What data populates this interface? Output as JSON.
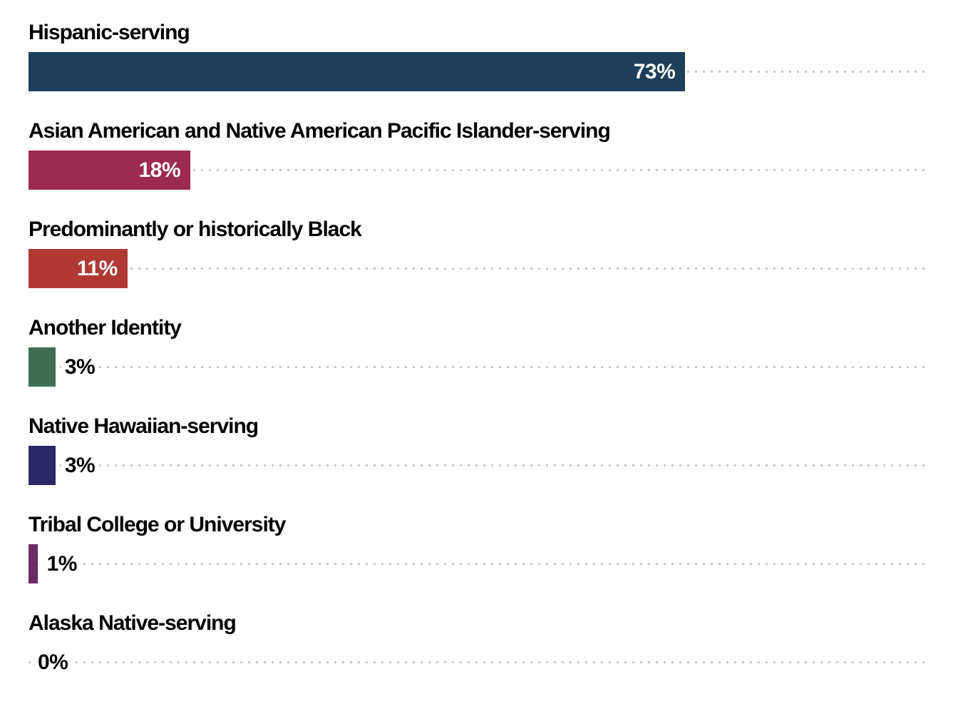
{
  "chart_data": {
    "type": "bar",
    "orientation": "horizontal",
    "title": "",
    "xlabel": "",
    "ylabel": "",
    "xlim": [
      0,
      100
    ],
    "unit": "%",
    "grid": "dotted-leader-line-per-row-to-100",
    "legend": "none",
    "categories": [
      "Hispanic-serving",
      "Asian American and Native American Pacific Islander-serving",
      "Predominantly or historically Black",
      "Another Identity",
      "Native Hawaiian-serving",
      "Tribal College or University",
      "Alaska Native-serving"
    ],
    "values": [
      73,
      18,
      11,
      3,
      3,
      1,
      0
    ],
    "items": [
      {
        "label": "Hispanic-serving",
        "value": 73,
        "value_label": "73%",
        "color": "#1e3e5b"
      },
      {
        "label": "Asian American and Native American Pacific Islander-serving",
        "value": 18,
        "value_label": "18%",
        "color": "#9d2a50"
      },
      {
        "label": "Predominantly or historically Black",
        "value": 11,
        "value_label": "11%",
        "color": "#b23932"
      },
      {
        "label": "Another Identity",
        "value": 3,
        "value_label": "3%",
        "color": "#3f6e52"
      },
      {
        "label": "Native Hawaiian-serving",
        "value": 3,
        "value_label": "3%",
        "color": "#2b2968"
      },
      {
        "label": "Tribal College or University",
        "value": 1,
        "value_label": "1%",
        "color": "#6c2a62"
      },
      {
        "label": "Alaska Native-serving",
        "value": 0,
        "value_label": "0%",
        "color": "#1e3e5b"
      }
    ],
    "styles": {
      "leader_dot_color": "#c9c9c9",
      "category_label_color": "#000000",
      "value_label_inside_color": "#ffffff",
      "value_label_outside_color": "#000000",
      "inside_label_threshold": 10
    }
  }
}
